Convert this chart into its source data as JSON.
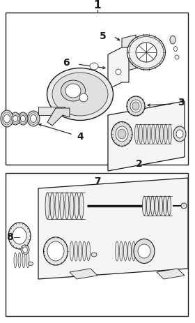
{
  "bg_color": "#ffffff",
  "line_color": "#1a1a1a",
  "fig_width": 2.8,
  "fig_height": 4.63,
  "dpi": 100
}
